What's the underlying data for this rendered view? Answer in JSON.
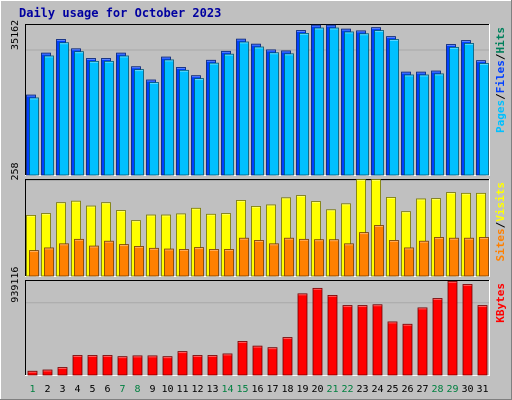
{
  "chart_data": {
    "type": "bar",
    "title": "Daily usage for October 2023",
    "categories": [
      "1",
      "2",
      "3",
      "4",
      "5",
      "6",
      "7",
      "8",
      "9",
      "10",
      "11",
      "12",
      "13",
      "14",
      "15",
      "16",
      "17",
      "18",
      "19",
      "20",
      "21",
      "22",
      "23",
      "24",
      "25",
      "26",
      "27",
      "28",
      "29",
      "30",
      "31"
    ],
    "weekend_days": [
      "1",
      "7",
      "8",
      "14",
      "15",
      "21",
      "22",
      "28",
      "29"
    ],
    "colors": {
      "background": "#c0c0c0",
      "hits": "#00805c",
      "files": "#0040ff",
      "pages": "#00c0ff",
      "visits": "#ffff00",
      "sites": "#ff8000",
      "kbytes": "#ff0000",
      "title": "#0000a0",
      "weekday_label": "#000000",
      "weekend_label": "#008040"
    },
    "panels": [
      {
        "id": "top",
        "ytick": "35162",
        "ytick_value": 35162,
        "ymax": 42400,
        "side_labels": [
          "Pages",
          "Files",
          "Hits"
        ],
        "series": [
          {
            "name": "Files",
            "color": "#0040ff",
            "values": [
              22300,
              34000,
              37800,
              35200,
              32500,
              32500,
              34000,
              30200,
              26500,
              32900,
              30000,
              27700,
              32000,
              34500,
              37900,
              36500,
              34900,
              34600,
              40300,
              41800,
              41800,
              40700,
              40200,
              41100,
              38600,
              28700,
              28700,
              29000,
              36400,
              37500,
              31900
            ]
          },
          {
            "name": "Pages",
            "color": "#00c0ff",
            "values": [
              21500,
              33200,
              36900,
              34400,
              31700,
              31700,
              33200,
              29400,
              25800,
              32100,
              29200,
              26900,
              31200,
              33700,
              37100,
              35700,
              34100,
              33800,
              39500,
              41000,
              41000,
              39900,
              39400,
              40300,
              37800,
              27900,
              27900,
              28200,
              35600,
              36700,
              31100
            ]
          }
        ]
      },
      {
        "id": "middle",
        "ytick": "258",
        "ytick_value": 258,
        "ymax": 262,
        "side_labels": [
          "Sites",
          "Visits"
        ],
        "series": [
          {
            "name": "Visits",
            "color": "#ffff00",
            "values": [
              162,
              167,
              196,
              200,
              187,
              196,
              175,
              148,
              163,
              163,
              166,
              181,
              165,
              167,
              202,
              186,
              190,
              209,
              215,
              199,
              177,
              193,
              258,
              258,
              210,
              172,
              206,
              207,
              223,
              221,
              221
            ]
          },
          {
            "name": "Sites",
            "color": "#ff8000",
            "values": [
              68,
              75,
              86,
              98,
              80,
              93,
              84,
              79,
              74,
              72,
              71,
              76,
              71,
              71,
              101,
              95,
              86,
              101,
              98,
              97,
              97,
              86,
              116,
              135,
              95,
              75,
              93,
              103,
              101,
              101,
              103
            ]
          }
        ]
      },
      {
        "id": "bottom",
        "ytick": "939116",
        "ytick_value": 939116,
        "ymax": 1230000,
        "side_labels": [
          "KBytes"
        ],
        "series": [
          {
            "name": "KBytes",
            "color": "#ff0000",
            "values": [
              48000,
              64000,
              96000,
              250000,
              250000,
              250000,
              235000,
              245000,
              245000,
              235000,
              300000,
              250000,
              250000,
              270000,
              430000,
              370000,
              350000,
              480000,
              1040000,
              1110000,
              1020000,
              890000,
              890000,
              900000,
              680000,
              650000,
              860000,
              980000,
              1200000,
              1160000,
              890000
            ]
          }
        ]
      }
    ]
  }
}
